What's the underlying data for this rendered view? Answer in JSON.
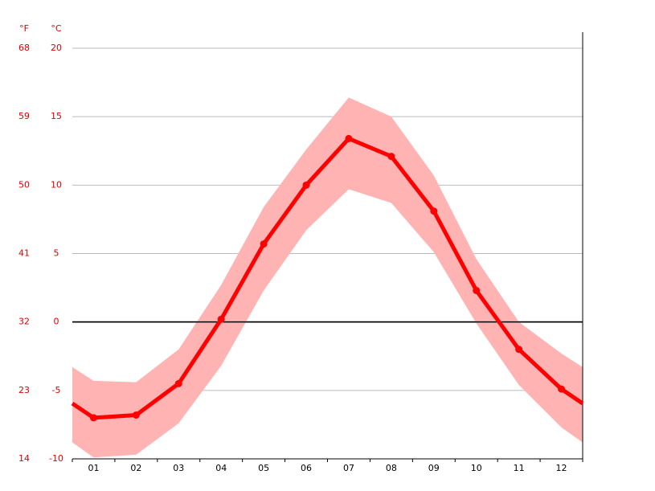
{
  "chart_data": {
    "type": "line",
    "y_unit": "°C",
    "y2_unit": "°F",
    "categories": [
      "01",
      "02",
      "03",
      "04",
      "05",
      "06",
      "07",
      "08",
      "09",
      "10",
      "11",
      "12"
    ],
    "series": [
      {
        "color": "#ff0000",
        "values": [
          -7.0,
          -6.8,
          -4.5,
          0.2,
          5.7,
          10.0,
          13.4,
          12.1,
          8.1,
          2.3,
          -2.0,
          -4.9
        ]
      }
    ],
    "band": {
      "color": "#ffb3b3",
      "upper": [
        -4.3,
        -4.4,
        -2.0,
        2.7,
        8.4,
        12.6,
        16.4,
        15.0,
        10.7,
        4.6,
        0.0,
        -2.3
      ],
      "lower": [
        -9.9,
        -9.7,
        -7.4,
        -3.2,
        2.3,
        6.7,
        9.7,
        8.7,
        5.1,
        -0.1,
        -4.6,
        -7.7
      ]
    },
    "ylim": [
      -10,
      20
    ],
    "yticks": [
      -10,
      -5,
      0,
      5,
      10,
      15,
      20
    ],
    "y2lim": [
      14,
      68
    ],
    "y2ticks": [
      14,
      23,
      32,
      41,
      50,
      59,
      68
    ],
    "grid": true
  }
}
